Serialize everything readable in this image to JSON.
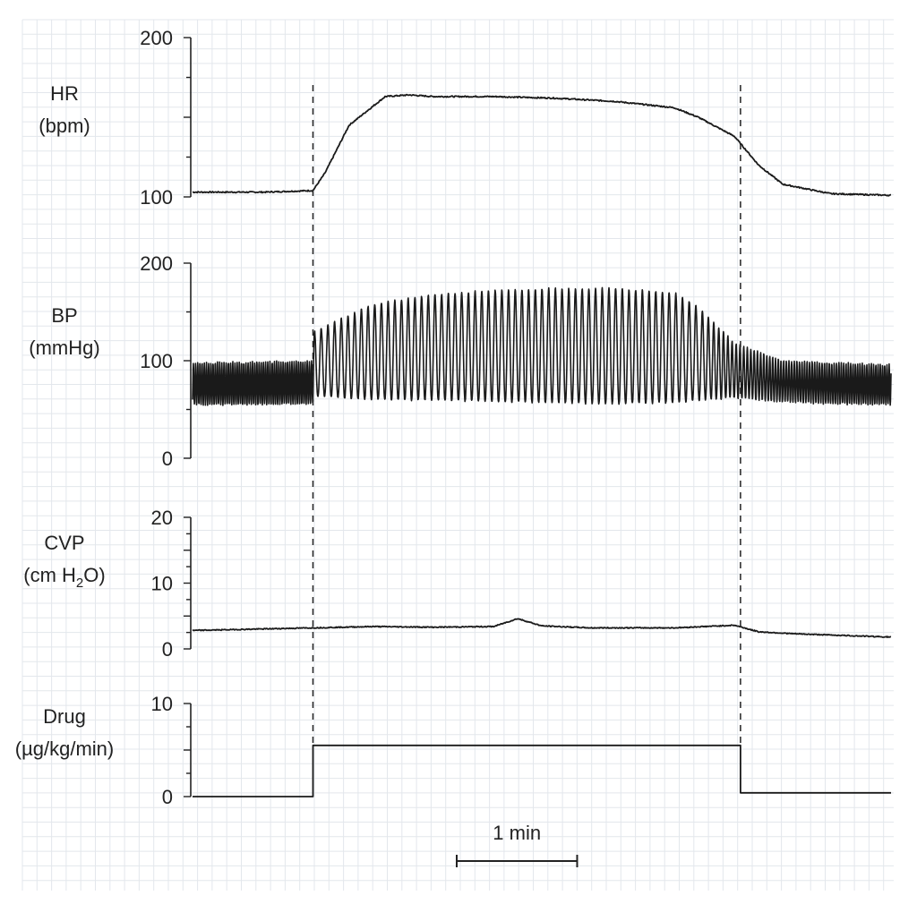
{
  "chart_data": [
    {
      "type": "line",
      "label_line1": "HR",
      "label_line2": "(bpm)",
      "ylim": [
        100,
        200
      ],
      "ytick_labels": [
        "100",
        "200"
      ],
      "ytick_values": [
        100,
        200
      ],
      "x": [
        0,
        0.3,
        0.6,
        1.0,
        1.1,
        1.3,
        1.6,
        1.8,
        2.0,
        2.5,
        3.0,
        3.5,
        4.0,
        4.2,
        4.5,
        4.7,
        4.9,
        5.3,
        5.8
      ],
      "y": [
        103,
        103,
        103,
        104,
        115,
        145,
        163,
        164,
        163,
        163,
        162,
        160,
        156,
        150,
        138,
        120,
        108,
        102,
        101
      ]
    },
    {
      "type": "line",
      "label_line1": "BP",
      "label_line2": "(mmHg)",
      "ylim": [
        0,
        200
      ],
      "ytick_labels": [
        "0",
        "100",
        "200"
      ],
      "ytick_values": [
        0,
        100,
        200
      ],
      "waveform": "oscillating",
      "x": [
        0,
        0.5,
        1.0,
        1.01,
        1.5,
        2.0,
        2.5,
        3.0,
        3.5,
        4.0,
        4.2,
        4.5,
        4.9,
        5.3,
        5.8
      ],
      "systolic": [
        98,
        99,
        100,
        130,
        158,
        168,
        172,
        174,
        174,
        170,
        155,
        118,
        100,
        98,
        96
      ],
      "diastolic": [
        55,
        55,
        56,
        64,
        60,
        60,
        58,
        57,
        56,
        57,
        60,
        62,
        58,
        56,
        55
      ],
      "beats_per_min": [
        55,
        55,
        55,
        18,
        18,
        18,
        18,
        18,
        18,
        18,
        18,
        30,
        45,
        50,
        55
      ]
    },
    {
      "type": "line",
      "label_line1": "CVP",
      "label_line2": "(cm H",
      "label_sub": "2",
      "label_line2_end": "O)",
      "ylim": [
        0,
        20
      ],
      "ytick_labels": [
        "0",
        "10",
        "20"
      ],
      "ytick_values": [
        0,
        10,
        20
      ],
      "x": [
        0,
        1.0,
        1.5,
        2.0,
        2.5,
        2.7,
        2.9,
        3.3,
        4.0,
        4.5,
        4.7,
        5.0,
        5.8
      ],
      "y": [
        2.8,
        3.2,
        3.4,
        3.3,
        3.4,
        4.6,
        3.5,
        3.2,
        3.2,
        3.6,
        2.6,
        2.3,
        1.8
      ]
    },
    {
      "type": "line",
      "label_line1": "Drug",
      "label_line2": "(µg/kg/min)",
      "ylim": [
        0,
        10
      ],
      "ytick_labels": [
        "0",
        "10"
      ],
      "ytick_values": [
        0,
        10
      ],
      "x": [
        0,
        1.0,
        1.0,
        4.55,
        4.55,
        5.8
      ],
      "y": [
        0,
        0,
        5.5,
        5.5,
        0.4,
        0.4
      ]
    }
  ],
  "scale_bar_label": "1 min",
  "grid": true,
  "vertical_markers": [
    1.0,
    4.55
  ]
}
